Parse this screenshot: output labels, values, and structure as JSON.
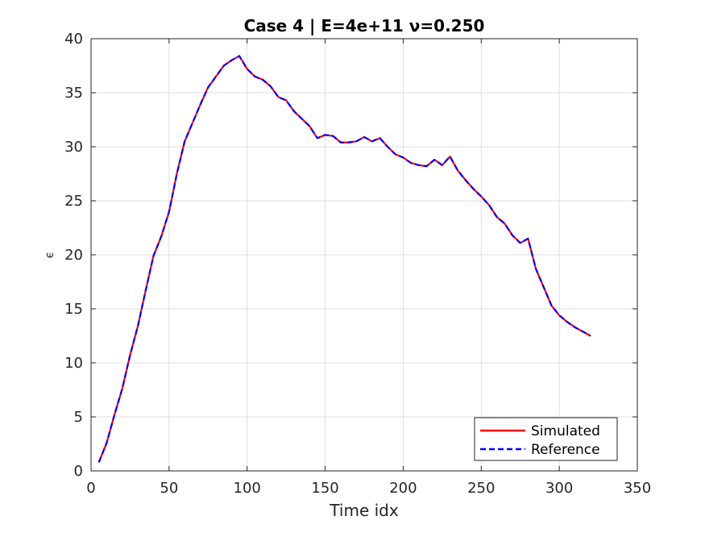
{
  "chart_data": {
    "type": "line",
    "title": "Case 4  |  E=4e+11  ν=0.250",
    "xlabel": "Time idx",
    "ylabel": "ϵ",
    "xlim": [
      0,
      350
    ],
    "ylim": [
      0,
      40
    ],
    "xticks": [
      0,
      50,
      100,
      150,
      200,
      250,
      300,
      350
    ],
    "yticks": [
      0,
      5,
      10,
      15,
      20,
      25,
      30,
      35,
      40
    ],
    "grid": true,
    "legend_position": "bottom-right",
    "series": [
      {
        "name": "Simulated",
        "color": "#ff0000",
        "style": "solid",
        "x": [
          5,
          10,
          15,
          20,
          25,
          30,
          35,
          40,
          45,
          50,
          55,
          60,
          65,
          70,
          75,
          80,
          85,
          90,
          95,
          100,
          105,
          110,
          115,
          120,
          125,
          130,
          135,
          140,
          145,
          150,
          155,
          160,
          165,
          170,
          175,
          180,
          185,
          190,
          195,
          200,
          205,
          210,
          215,
          220,
          225,
          230,
          235,
          240,
          245,
          250,
          255,
          260,
          265,
          270,
          275,
          280,
          285,
          290,
          295,
          300,
          305,
          310,
          315,
          320
        ],
        "y": [
          0.8,
          2.6,
          5.2,
          7.6,
          10.7,
          13.4,
          16.7,
          19.9,
          21.7,
          24.0,
          27.5,
          30.5,
          32.2,
          33.9,
          35.5,
          36.5,
          37.5,
          38.0,
          38.4,
          37.2,
          36.5,
          36.2,
          35.6,
          34.6,
          34.3,
          33.3,
          32.6,
          31.9,
          30.8,
          31.1,
          31.0,
          30.4,
          30.4,
          30.5,
          30.9,
          30.5,
          30.8,
          30.0,
          29.3,
          29.0,
          28.5,
          28.3,
          28.2,
          28.8,
          28.3,
          29.1,
          27.8,
          26.9,
          26.1,
          25.4,
          24.6,
          23.5,
          22.9,
          21.8,
          21.1,
          21.5,
          18.7,
          17.0,
          15.3,
          14.4,
          13.8,
          13.3,
          12.9,
          12.5
        ]
      },
      {
        "name": "Reference",
        "color": "#0000ff",
        "style": "dashed",
        "x": [
          5,
          10,
          15,
          20,
          25,
          30,
          35,
          40,
          45,
          50,
          55,
          60,
          65,
          70,
          75,
          80,
          85,
          90,
          95,
          100,
          105,
          110,
          115,
          120,
          125,
          130,
          135,
          140,
          145,
          150,
          155,
          160,
          165,
          170,
          175,
          180,
          185,
          190,
          195,
          200,
          205,
          210,
          215,
          220,
          225,
          230,
          235,
          240,
          245,
          250,
          255,
          260,
          265,
          270,
          275,
          280,
          285,
          290,
          295,
          300,
          305,
          310,
          315,
          320
        ],
        "y": [
          0.8,
          2.6,
          5.2,
          7.6,
          10.7,
          13.4,
          16.7,
          19.9,
          21.7,
          24.0,
          27.5,
          30.5,
          32.2,
          33.9,
          35.5,
          36.5,
          37.5,
          38.0,
          38.4,
          37.2,
          36.5,
          36.2,
          35.6,
          34.6,
          34.3,
          33.3,
          32.6,
          31.9,
          30.8,
          31.1,
          31.0,
          30.4,
          30.4,
          30.5,
          30.9,
          30.5,
          30.8,
          30.0,
          29.3,
          29.0,
          28.5,
          28.3,
          28.2,
          28.8,
          28.3,
          29.1,
          27.8,
          26.9,
          26.1,
          25.4,
          24.6,
          23.5,
          22.9,
          21.8,
          21.1,
          21.5,
          18.7,
          17.0,
          15.3,
          14.4,
          13.8,
          13.3,
          12.9,
          12.5
        ]
      }
    ]
  }
}
